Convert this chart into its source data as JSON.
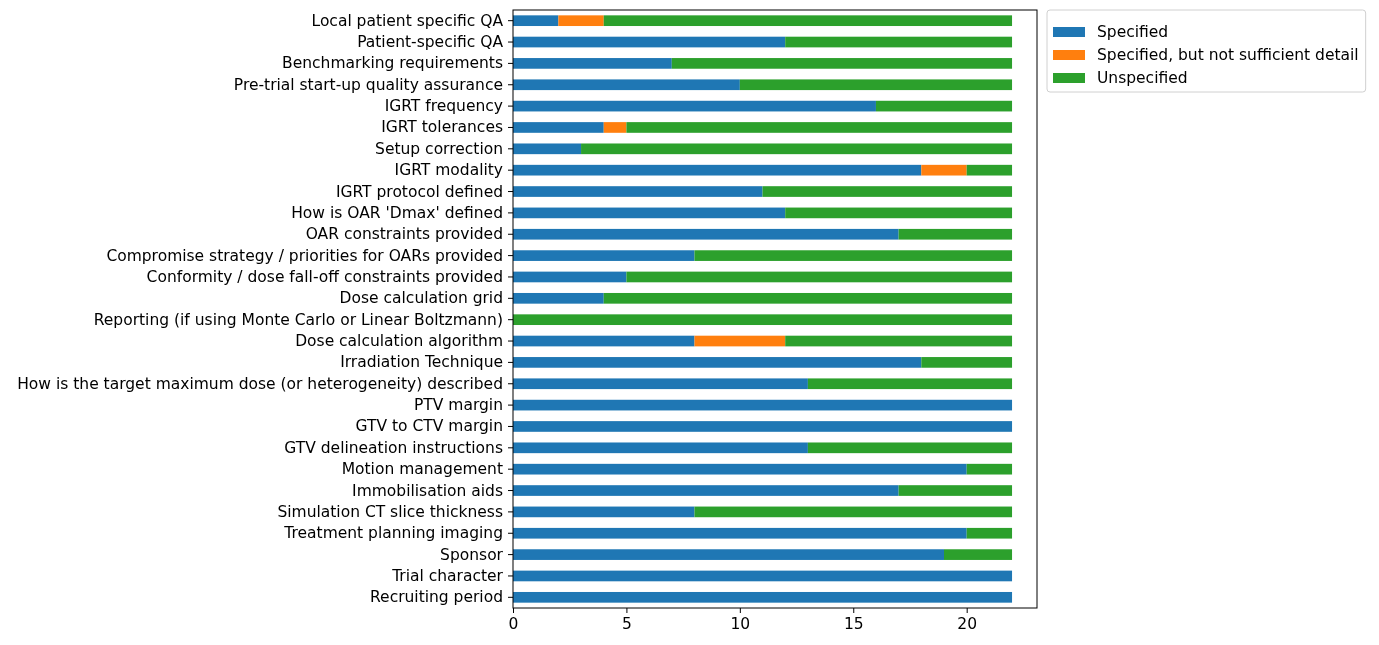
{
  "chart_data": {
    "type": "bar",
    "orientation": "horizontal",
    "stacked": true,
    "categories": [
      "Local patient specific QA",
      "Patient-specific QA",
      "Benchmarking requirements",
      "Pre-trial start-up quality assurance",
      "IGRT frequency",
      "IGRT tolerances",
      "Setup correction",
      "IGRT modality",
      "IGRT protocol defined",
      "How is OAR 'Dmax' defined",
      "OAR constraints provided",
      "Compromise strategy / priorities for OARs provided",
      "Conformity / dose fall-off constraints provided",
      "Dose calculation grid",
      "Reporting (if using Monte Carlo or Linear Boltzmann)",
      "Dose calculation algorithm",
      "Irradiation Technique",
      "How is the target maximum dose (or heterogeneity) described",
      "PTV margin",
      "GTV to CTV margin",
      "GTV delineation instructions",
      "Motion management",
      "Immobilisation aids",
      "Simulation CT slice thickness",
      "Treatment planning imaging",
      "Sponsor",
      "Trial character",
      "Recruiting period"
    ],
    "series": [
      {
        "name": "Specified",
        "color": "#1f77b4",
        "values": [
          2,
          12,
          7,
          10,
          16,
          4,
          3,
          18,
          11,
          12,
          17,
          8,
          5,
          4,
          0,
          8,
          18,
          13,
          22,
          22,
          13,
          20,
          17,
          8,
          20,
          19,
          22,
          22
        ]
      },
      {
        "name": "Specified, but not sufficient detail",
        "color": "#ff7f0e",
        "values": [
          2,
          0,
          0,
          0,
          0,
          1,
          0,
          2,
          0,
          0,
          0,
          0,
          0,
          0,
          0,
          4,
          0,
          0,
          0,
          0,
          0,
          0,
          0,
          0,
          0,
          0,
          0,
          0
        ]
      },
      {
        "name": "Unspecified",
        "color": "#2ca02c",
        "values": [
          18,
          10,
          15,
          12,
          6,
          17,
          19,
          2,
          11,
          10,
          5,
          14,
          17,
          18,
          22,
          10,
          4,
          9,
          0,
          0,
          9,
          2,
          5,
          14,
          2,
          3,
          0,
          0
        ]
      }
    ],
    "xlim": [
      0,
      23.1
    ],
    "xticks": [
      0,
      5,
      10,
      15,
      20
    ],
    "legend": "top right"
  }
}
